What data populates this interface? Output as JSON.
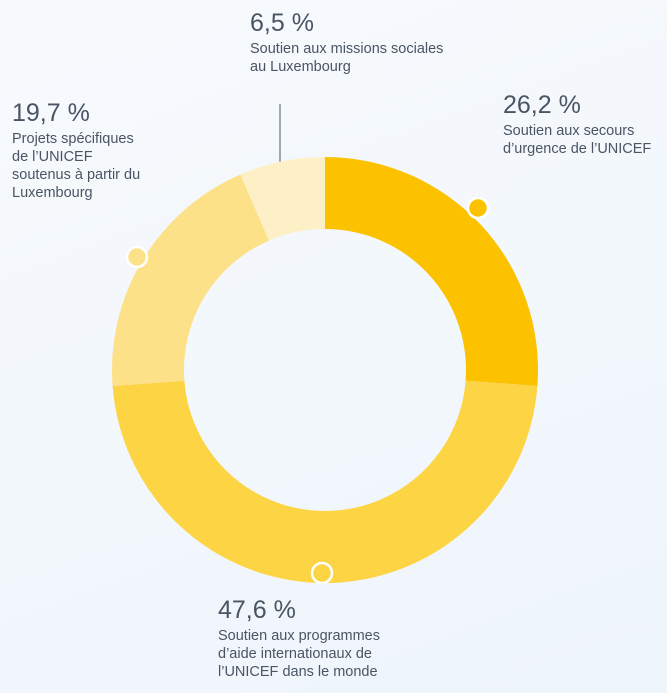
{
  "chart_data": {
    "type": "donut",
    "categories": [
      "Soutien aux secours d’urgence de l’UNICEF",
      "Soutien aux programmes d’aide internationaux de l’UNICEF dans le monde",
      "Projets spécifiques de l’UNICEF soutenus à partir du Luxembourg",
      "Soutien aux missions sociales au Luxembourg"
    ],
    "values": [
      26.2,
      47.6,
      19.7,
      6.5
    ],
    "value_labels": [
      "26,2 %",
      "47,6 %",
      "19,7 %",
      "6,5 %"
    ],
    "colors": [
      "#fcc200",
      "#fdd444",
      "#fde189",
      "#fef0c6"
    ]
  }
}
